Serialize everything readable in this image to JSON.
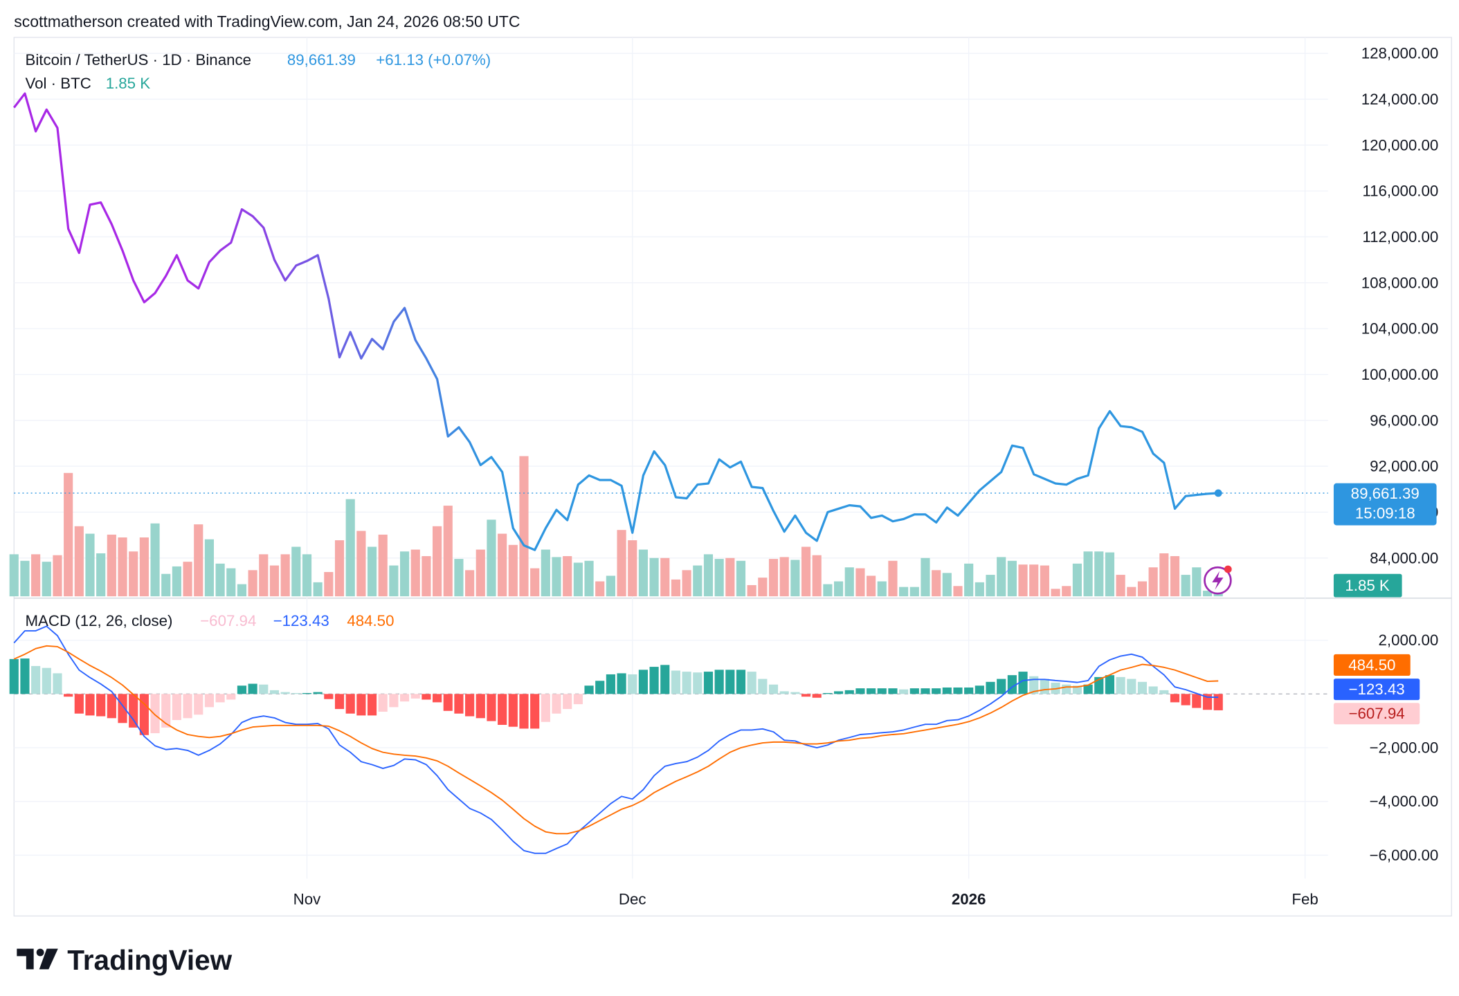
{
  "header": {
    "attribution": "scottmatherson created with TradingView.com, Jan 24, 2026 08:50 UTC"
  },
  "footer": {
    "brand": "TradingView"
  },
  "chart_data": {
    "type": "line",
    "title": "Bitcoin / TetherUS · 1D · Binance",
    "last_label": "89,661.39",
    "change_label": "+61.13 (+0.07%)",
    "countdown": "15:09:18",
    "colors": [
      "#a828e6",
      "#2e96e0"
    ],
    "x": [
      0,
      1,
      2,
      3,
      4,
      5,
      6,
      7,
      8,
      9,
      10,
      11,
      12,
      13,
      14,
      15,
      16,
      17,
      18,
      19,
      20,
      21,
      22,
      23,
      24,
      25,
      26,
      27,
      28,
      29,
      30,
      31,
      32,
      33,
      34,
      35,
      36,
      37,
      38,
      39,
      40,
      41,
      42,
      43,
      44,
      45,
      46,
      47,
      48,
      49,
      50,
      51,
      52,
      53,
      54,
      55,
      56,
      57,
      58,
      59,
      60,
      61,
      62,
      63,
      64,
      65,
      66,
      67,
      68,
      69,
      70,
      71,
      72,
      73,
      74,
      75,
      76,
      77,
      78,
      79,
      80,
      81,
      82,
      83,
      84,
      85,
      86,
      87,
      88,
      89,
      90,
      91,
      92,
      93,
      94,
      95,
      96,
      97,
      98,
      99,
      100,
      101,
      102,
      103,
      104,
      105,
      106,
      107,
      108,
      109,
      110,
      111
    ],
    "values": [
      123270,
      124500,
      121200,
      123100,
      121500,
      112700,
      110600,
      114800,
      115000,
      113100,
      110800,
      108200,
      106300,
      107100,
      108600,
      110400,
      108200,
      107500,
      109800,
      110800,
      111500,
      114400,
      113800,
      112800,
      110000,
      108200,
      109500,
      109900,
      110400,
      106600,
      101500,
      103700,
      101400,
      103100,
      102200,
      104600,
      105800,
      103000,
      101400,
      99600,
      94600,
      95400,
      94100,
      92100,
      92800,
      91500,
      86600,
      85100,
      84700,
      86600,
      88200,
      87300,
      90400,
      91200,
      90800,
      90800,
      90300,
      86200,
      91200,
      93300,
      92100,
      89300,
      89200,
      90400,
      90500,
      92600,
      91900,
      92400,
      90200,
      90100,
      88100,
      86300,
      87700,
      86200,
      85500,
      88000,
      88300,
      88600,
      88500,
      87500,
      87700,
      87200,
      87400,
      87800,
      87800,
      87100,
      88400,
      87700,
      88800,
      89900,
      90700,
      91500,
      93800,
      93600,
      91300,
      90900,
      90500,
      90400,
      90900,
      91200,
      95300,
      96800,
      95500,
      95400,
      95000,
      93100,
      92300,
      88300,
      89400,
      89500,
      89600,
      89661.39
    ],
    "xlim": [
      0,
      121.12
    ],
    "xticks": [
      {
        "value": 27,
        "label": "Nov"
      },
      {
        "value": 57,
        "label": "Dec"
      },
      {
        "value": 88,
        "label": "2026"
      },
      {
        "value": 119,
        "label": "Feb"
      }
    ],
    "ylim": [
      80660,
      129390
    ],
    "yticks": [
      {
        "value": 84000,
        "label": "84,000.00"
      },
      {
        "value": 88000,
        "label": "88,000.00"
      },
      {
        "value": 92000,
        "label": "92,000.00"
      },
      {
        "value": 96000,
        "label": "96,000.00"
      },
      {
        "value": 100000,
        "label": "100,000.00"
      },
      {
        "value": 104000,
        "label": "104,000.00"
      },
      {
        "value": 108000,
        "label": "108,000.00"
      },
      {
        "value": 112000,
        "label": "112,000.00"
      },
      {
        "value": 116000,
        "label": "116,000.00"
      },
      {
        "value": 120000,
        "label": "120,000.00"
      },
      {
        "value": 124000,
        "label": "124,000.00"
      },
      {
        "value": 128000,
        "label": "128,000.00"
      }
    ],
    "grid": true,
    "volume": {
      "type": "bar",
      "name": "Vol · BTC",
      "last_label": "1.85 K",
      "color": "#26a69a",
      "up_color": "#98d4cc",
      "down_color": "#f6a9a7",
      "values": [
        13.5,
        11.4,
        13.5,
        11.1,
        13.2,
        39.6,
        22.5,
        20.1,
        13.8,
        19.8,
        18.9,
        14.4,
        18.9,
        23.4,
        7.2,
        9.6,
        11.1,
        23.1,
        18.3,
        10.5,
        9.0,
        3.9,
        8.4,
        13.5,
        9.9,
        13.5,
        15.9,
        13.5,
        4.5,
        7.8,
        18.0,
        31.2,
        21.0,
        15.9,
        19.8,
        9.9,
        14.4,
        15.0,
        12.9,
        22.5,
        29.1,
        12.0,
        8.4,
        15.0,
        24.6,
        20.1,
        16.5,
        45.0,
        9.0,
        15.0,
        12.6,
        12.9,
        10.8,
        11.4,
        4.8,
        6.6,
        21.3,
        18.0,
        15.0,
        12.3,
        12.3,
        5.4,
        8.4,
        9.9,
        13.5,
        12.0,
        12.3,
        11.4,
        3.6,
        6.0,
        12.0,
        12.6,
        11.7,
        15.9,
        13.2,
        3.9,
        4.8,
        9.3,
        9.0,
        6.6,
        4.8,
        11.4,
        3.0,
        3.0,
        12.3,
        8.4,
        7.5,
        3.3,
        10.5,
        4.5,
        6.9,
        12.6,
        11.4,
        10.2,
        10.2,
        9.9,
        2.4,
        3.3,
        10.5,
        14.4,
        14.4,
        14.1,
        6.9,
        3.0,
        4.8,
        9.3,
        13.8,
        12.9,
        6.9,
        9.3,
        1.8,
        1.85
      ]
    },
    "macd": {
      "type": "macd",
      "title": "MACD (12, 26, close)",
      "ylim": [
        -6870,
        3390
      ],
      "yticks": [
        {
          "value": -6000,
          "label": "−6,000.00"
        },
        {
          "value": -4000,
          "label": "−4,000.00"
        },
        {
          "value": -2000,
          "label": "−2,000.00"
        },
        {
          "value": 2000,
          "label": "2,000.00"
        }
      ],
      "histogram": {
        "last_label": "−607.94",
        "colors": [
          "#26a69a",
          "#b2dfdb",
          "#ff5252",
          "#ffcdd2"
        ],
        "values": [
          1300,
          1320,
          1040,
          970,
          770,
          -100,
          -730,
          -800,
          -830,
          -900,
          -1080,
          -1250,
          -1530,
          -1460,
          -1250,
          -970,
          -900,
          -770,
          -490,
          -310,
          -210,
          310,
          380,
          350,
          140,
          70,
          35,
          35,
          70,
          -190,
          -560,
          -730,
          -800,
          -800,
          -660,
          -490,
          -280,
          -170,
          -210,
          -310,
          -630,
          -730,
          -830,
          -900,
          -1010,
          -1150,
          -1220,
          -1290,
          -1290,
          -1040,
          -730,
          -560,
          -380,
          310,
          490,
          730,
          770,
          730,
          900,
          1010,
          1080,
          870,
          830,
          800,
          830,
          900,
          900,
          900,
          830,
          560,
          350,
          100,
          70,
          -100,
          -140,
          35,
          100,
          140,
          210,
          210,
          210,
          210,
          170,
          210,
          210,
          210,
          240,
          240,
          240,
          310,
          450,
          560,
          700,
          830,
          660,
          560,
          420,
          350,
          310,
          350,
          630,
          700,
          630,
          560,
          450,
          280,
          140,
          -310,
          -420,
          -520,
          -590,
          -607.94
        ]
      },
      "macd_line": {
        "last_label": "−123.43",
        "color": "#2962ff",
        "values": [
          1900,
          2350,
          2350,
          2520,
          2170,
          1480,
          890,
          610,
          370,
          90,
          -430,
          -960,
          -1580,
          -1930,
          -2070,
          -2030,
          -2100,
          -2280,
          -2100,
          -1860,
          -1510,
          -1060,
          -890,
          -820,
          -890,
          -1060,
          -1130,
          -1130,
          -1100,
          -1300,
          -1900,
          -2170,
          -2520,
          -2630,
          -2770,
          -2660,
          -2420,
          -2450,
          -2630,
          -3040,
          -3560,
          -3910,
          -4260,
          -4430,
          -4670,
          -5060,
          -5480,
          -5830,
          -5930,
          -5930,
          -5750,
          -5580,
          -5130,
          -4780,
          -4430,
          -4080,
          -3810,
          -3910,
          -3560,
          -3040,
          -2690,
          -2590,
          -2520,
          -2350,
          -2100,
          -1750,
          -1510,
          -1340,
          -1340,
          -1300,
          -1410,
          -1720,
          -1750,
          -1900,
          -2000,
          -1900,
          -1720,
          -1620,
          -1510,
          -1480,
          -1440,
          -1410,
          -1340,
          -1230,
          -1130,
          -1130,
          -990,
          -960,
          -820,
          -610,
          -370,
          -90,
          260,
          500,
          540,
          540,
          500,
          470,
          430,
          500,
          1030,
          1270,
          1410,
          1480,
          1370,
          1030,
          710,
          260,
          160,
          20,
          -120,
          -123.43
        ]
      },
      "signal": {
        "last_label": "484.50",
        "color": "#ff6d00",
        "values": [
          1300,
          1480,
          1690,
          1790,
          1760,
          1550,
          1300,
          1060,
          850,
          610,
          330,
          -20,
          -370,
          -780,
          -1100,
          -1340,
          -1510,
          -1580,
          -1620,
          -1580,
          -1480,
          -1340,
          -1230,
          -1200,
          -1170,
          -1170,
          -1170,
          -1170,
          -1170,
          -1200,
          -1370,
          -1580,
          -1820,
          -2030,
          -2170,
          -2240,
          -2280,
          -2310,
          -2380,
          -2490,
          -2690,
          -2940,
          -3180,
          -3420,
          -3670,
          -3950,
          -4290,
          -4640,
          -4920,
          -5130,
          -5200,
          -5200,
          -5100,
          -4920,
          -4710,
          -4500,
          -4290,
          -4150,
          -3950,
          -3670,
          -3460,
          -3250,
          -3080,
          -2900,
          -2690,
          -2420,
          -2170,
          -2000,
          -1900,
          -1820,
          -1790,
          -1790,
          -1820,
          -1860,
          -1860,
          -1820,
          -1750,
          -1720,
          -1650,
          -1620,
          -1550,
          -1510,
          -1480,
          -1410,
          -1340,
          -1270,
          -1200,
          -1130,
          -1030,
          -890,
          -710,
          -500,
          -260,
          -50,
          90,
          160,
          190,
          260,
          260,
          330,
          540,
          710,
          890,
          990,
          1100,
          1060,
          990,
          890,
          750,
          610,
          470,
          484.5
        ]
      }
    }
  }
}
